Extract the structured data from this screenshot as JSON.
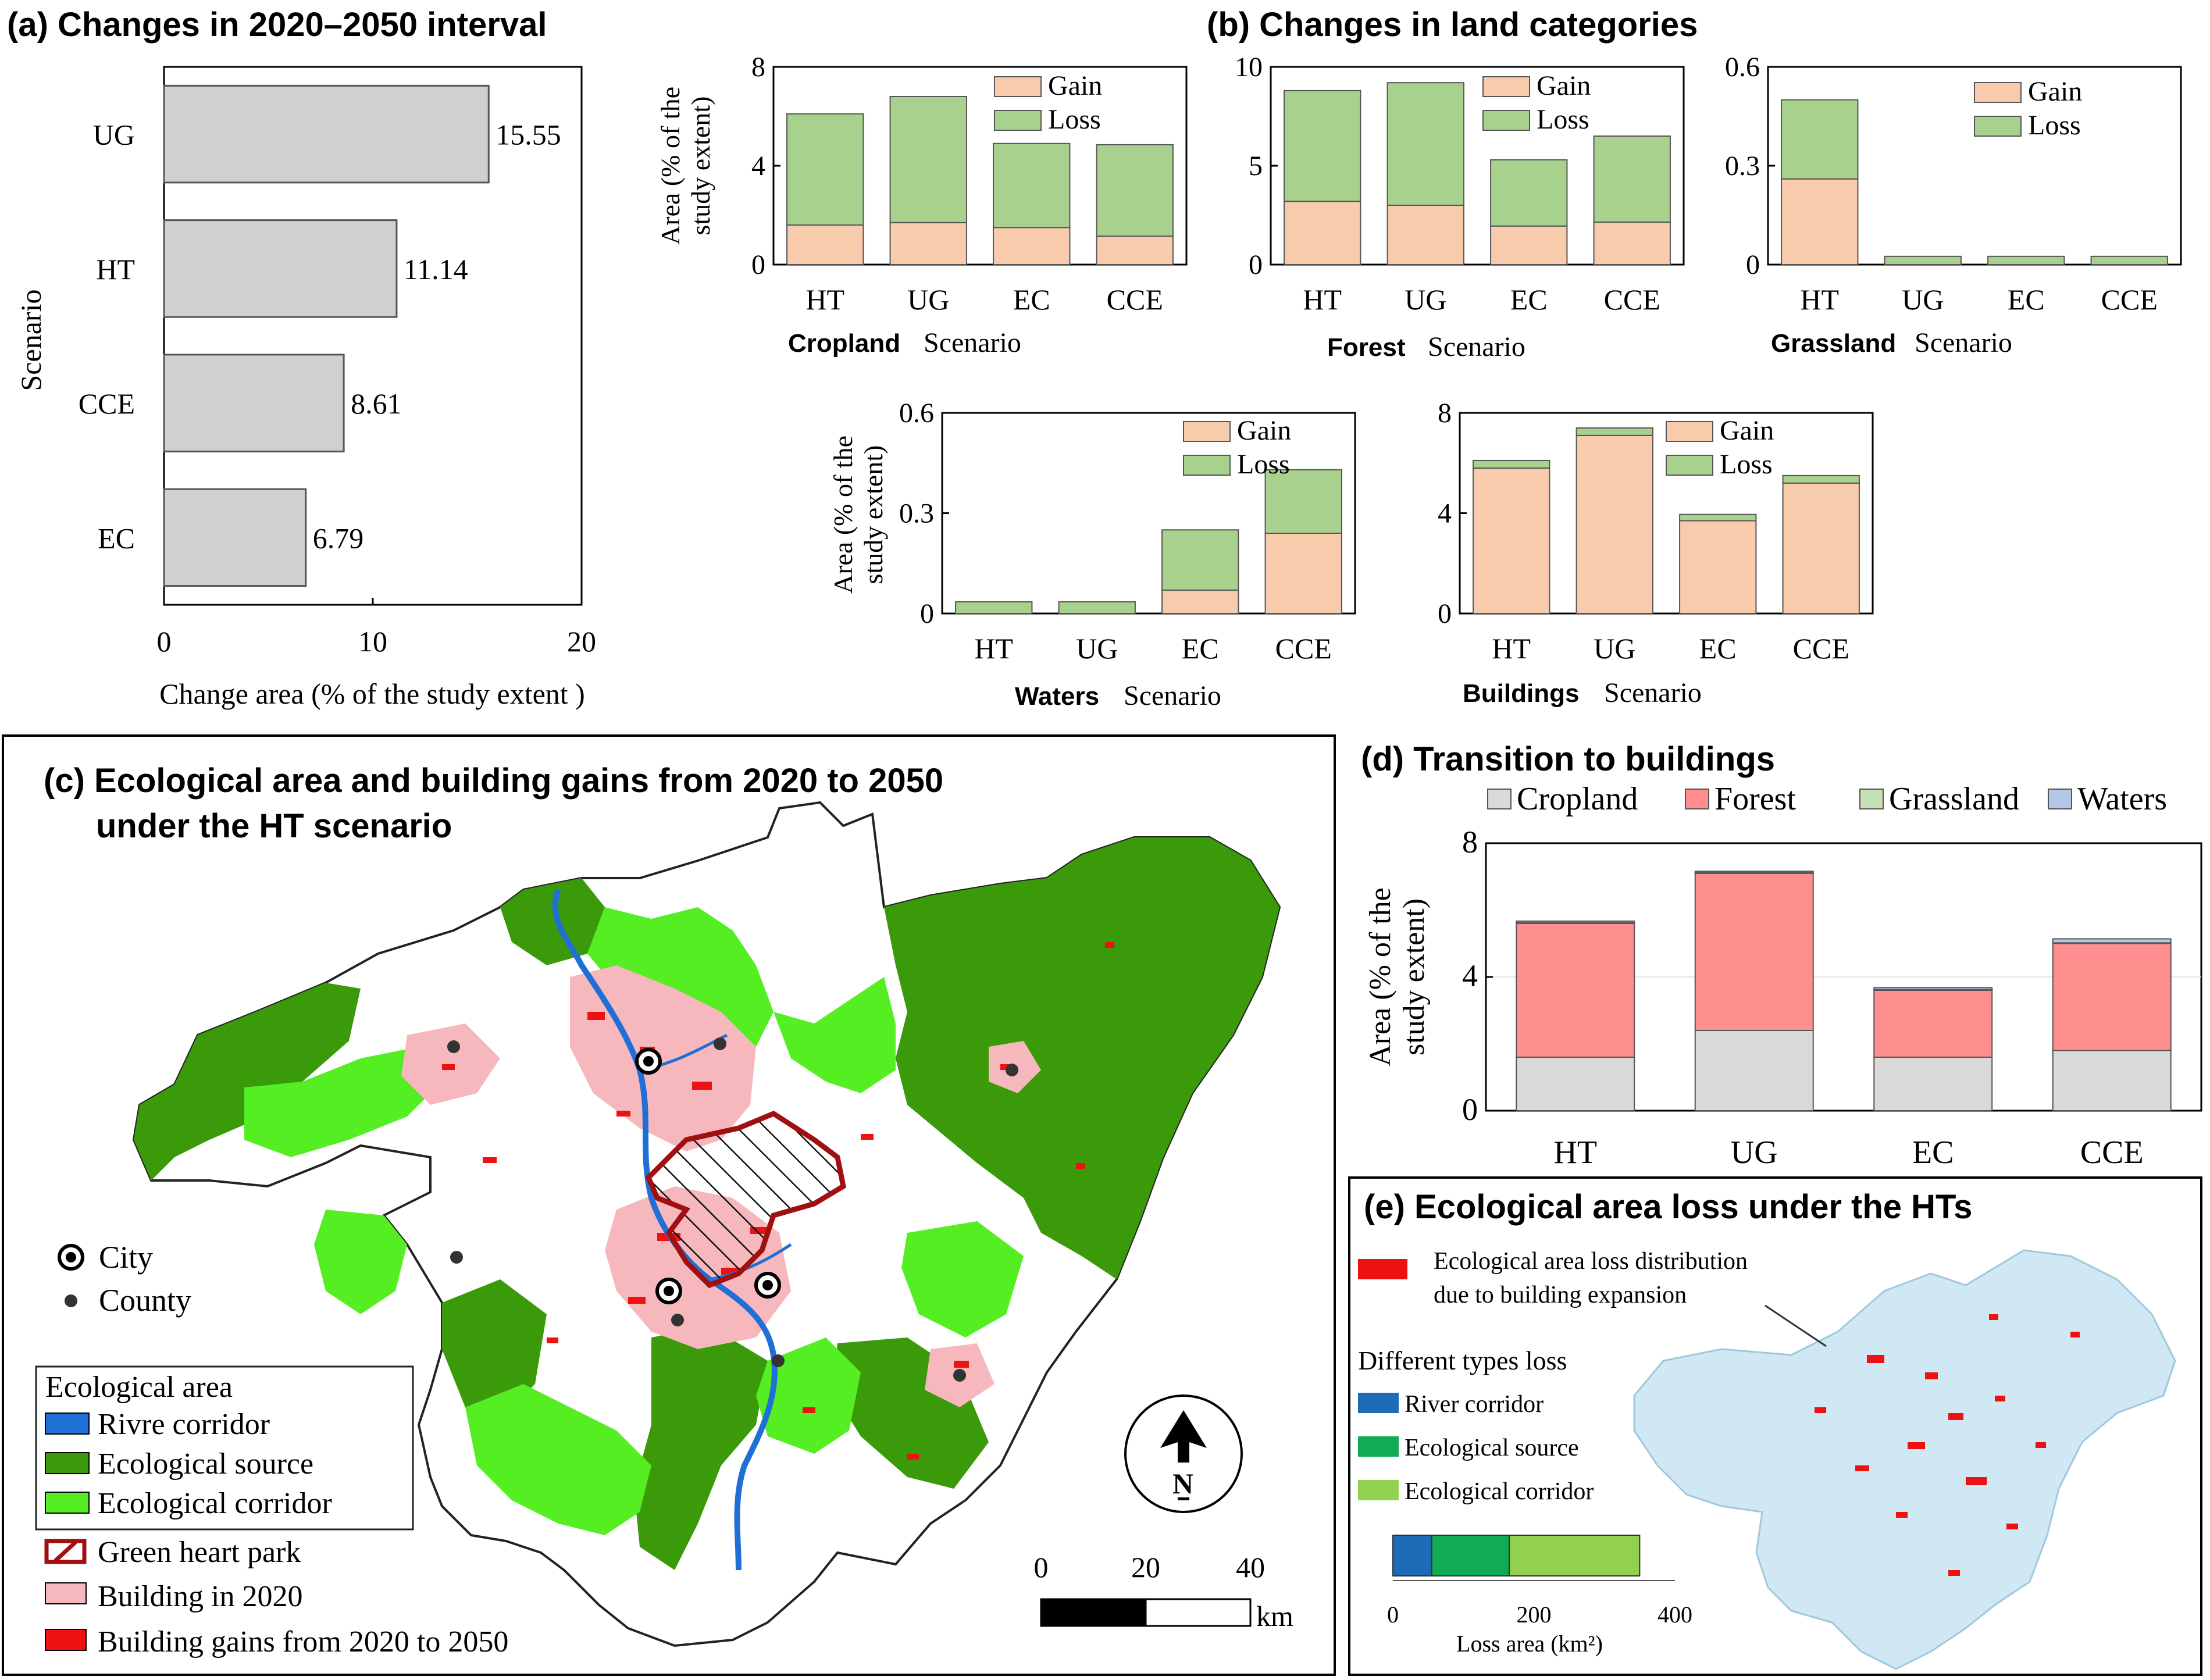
{
  "colors": {
    "gain": "#f8cbad",
    "loss": "#a9d18e",
    "bar_gray": "#d0d0d0",
    "cropland": "#d9d9d9",
    "forest": "#ff8f8f",
    "grassland": "#c5e0b4",
    "waters": "#b4c7e7",
    "river": "#1f6fd6",
    "eco_source": "#3a9a0a",
    "eco_corridor": "#55ee22",
    "building2020": "#f6b8bd",
    "building_gain": "#ee1111",
    "park": "#a01010",
    "loss_bg": "#cfe8f4",
    "loss_river": "#1e6bb8",
    "loss_source": "#11aa55",
    "loss_corridor": "#92d050"
  },
  "panel_a": {
    "title": "(a) Changes in 2020–2050 interval",
    "ylabel": "Scenario",
    "xlabel": "Change area (% of the study extent )"
  },
  "panel_b": {
    "title": "(b) Changes in land categories",
    "ylabel_line1": "Area (% of the",
    "ylabel_line2": "study extent)",
    "xword": "Scenario",
    "legend_gain": "Gain",
    "legend_loss": "Loss"
  },
  "panel_c": {
    "title_line1": "(c) Ecological area and building gains from 2020 to 2050",
    "title_line2": "under the HT scenario",
    "legend_city": "City",
    "legend_county": "County",
    "legend_eco_title": "Ecological area",
    "legend_river": "Rivre corridor",
    "legend_source": "Ecological source",
    "legend_corridor": "Ecological corridor",
    "legend_park": "Green heart park",
    "legend_b2020": "Building in 2020",
    "legend_bgain": "Building gains from 2020 to 2050",
    "north": "N",
    "scale_ticks": [
      "0",
      "20",
      "40"
    ],
    "scale_unit": "km"
  },
  "panel_d": {
    "title": "(d) Transition to buildings",
    "ylabel_line1": "Area (% of the",
    "ylabel_line2": "study extent)"
  },
  "panel_e": {
    "title": "(e) Ecological area loss under the HTs",
    "note_line1": "Ecological area loss distribution",
    "note_line2": "due to building expansion",
    "types_title": "Different types loss",
    "river": "River corridor",
    "source": "Ecological source",
    "corridor": "Ecological corridor",
    "xlabel": "Loss area (km²)"
  },
  "chart_data": [
    {
      "id": "a",
      "type": "bar",
      "orientation": "horizontal",
      "categories": [
        "UG",
        "HT",
        "CCE",
        "EC"
      ],
      "values": [
        15.55,
        11.14,
        8.61,
        6.79
      ],
      "value_labels": [
        "15.55",
        "11.14",
        "8.61",
        "6.79"
      ],
      "xlim": [
        0,
        20
      ],
      "xticks": [
        "0",
        "10",
        "20"
      ]
    },
    {
      "id": "b-cropland",
      "type": "bar",
      "stacked": true,
      "label": "Cropland",
      "categories": [
        "HT",
        "UG",
        "EC",
        "CCE"
      ],
      "series": [
        {
          "name": "Gain",
          "values": [
            1.6,
            1.7,
            1.5,
            1.15
          ]
        },
        {
          "name": "Loss",
          "values": [
            4.5,
            5.1,
            3.4,
            3.7
          ]
        }
      ],
      "ylim": [
        0,
        8
      ],
      "yticks": [
        "0",
        "4",
        "8"
      ]
    },
    {
      "id": "b-forest",
      "type": "bar",
      "stacked": true,
      "label": "Forest",
      "categories": [
        "HT",
        "UG",
        "EC",
        "CCE"
      ],
      "series": [
        {
          "name": "Gain",
          "values": [
            3.2,
            3.0,
            1.95,
            2.15
          ]
        },
        {
          "name": "Loss",
          "values": [
            5.6,
            6.2,
            3.35,
            4.35
          ]
        }
      ],
      "ylim": [
        0,
        10
      ],
      "yticks": [
        "0",
        "5",
        "10"
      ]
    },
    {
      "id": "b-grassland",
      "type": "bar",
      "stacked": true,
      "label": "Grassland",
      "categories": [
        "HT",
        "UG",
        "EC",
        "CCE"
      ],
      "series": [
        {
          "name": "Gain",
          "values": [
            0.26,
            0,
            0,
            0
          ]
        },
        {
          "name": "Loss",
          "values": [
            0.24,
            0.025,
            0.025,
            0.025
          ]
        }
      ],
      "ylim": [
        0,
        0.6
      ],
      "yticks": [
        "0",
        "0.3",
        "0.6"
      ]
    },
    {
      "id": "b-waters",
      "type": "bar",
      "stacked": true,
      "label": "Waters",
      "categories": [
        "HT",
        "UG",
        "EC",
        "CCE"
      ],
      "series": [
        {
          "name": "Gain",
          "values": [
            0,
            0,
            0.07,
            0.24
          ]
        },
        {
          "name": "Loss",
          "values": [
            0.035,
            0.035,
            0.18,
            0.19
          ]
        }
      ],
      "ylim": [
        0,
        0.6
      ],
      "yticks": [
        "0",
        "0.3",
        "0.6"
      ]
    },
    {
      "id": "b-buildings",
      "type": "bar",
      "stacked": true,
      "label": "Buildings",
      "categories": [
        "HT",
        "UG",
        "EC",
        "CCE"
      ],
      "series": [
        {
          "name": "Gain",
          "values": [
            5.8,
            7.1,
            3.7,
            5.2
          ]
        },
        {
          "name": "Loss",
          "values": [
            0.3,
            0.3,
            0.25,
            0.3
          ]
        }
      ],
      "ylim": [
        0,
        8
      ],
      "yticks": [
        "0",
        "4",
        "8"
      ]
    },
    {
      "id": "d",
      "type": "bar",
      "stacked": true,
      "categories": [
        "HT",
        "UG",
        "EC",
        "CCE"
      ],
      "series": [
        {
          "name": "Cropland",
          "values": [
            1.6,
            2.4,
            1.6,
            1.8
          ]
        },
        {
          "name": "Forest",
          "values": [
            4.0,
            4.7,
            2.0,
            3.2
          ]
        },
        {
          "name": "Grassland",
          "values": [
            0.02,
            0.02,
            0.02,
            0.02
          ]
        },
        {
          "name": "Waters",
          "values": [
            0.05,
            0.04,
            0.06,
            0.12
          ]
        }
      ],
      "ylim": [
        0,
        8
      ],
      "yticks": [
        "0",
        "4",
        "8"
      ]
    },
    {
      "id": "e",
      "type": "bar",
      "stacked": true,
      "orientation": "horizontal",
      "series": [
        {
          "name": "River corridor",
          "values": [
            55
          ]
        },
        {
          "name": "Ecological source",
          "values": [
            110
          ]
        },
        {
          "name": "Ecological corridor",
          "values": [
            185
          ]
        }
      ],
      "xlim": [
        0,
        400
      ],
      "xticks": [
        "0",
        "200",
        "400"
      ]
    }
  ]
}
